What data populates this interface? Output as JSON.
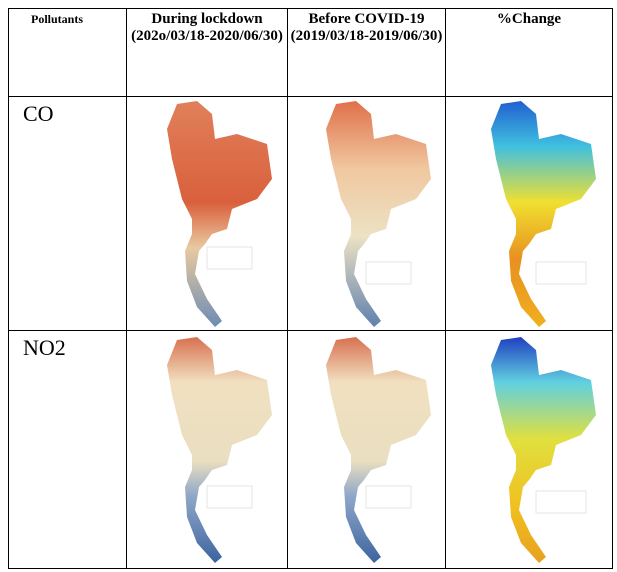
{
  "table": {
    "header": [
      "Pollutants",
      "During lockdown (202o/03/18-2020/06/30)",
      "Before COVID-19 (2019/03/18-2019/06/30)",
      "%Change"
    ],
    "rows": [
      {
        "pollutant": "CO"
      },
      {
        "pollutant": "NO2"
      }
    ]
  }
}
